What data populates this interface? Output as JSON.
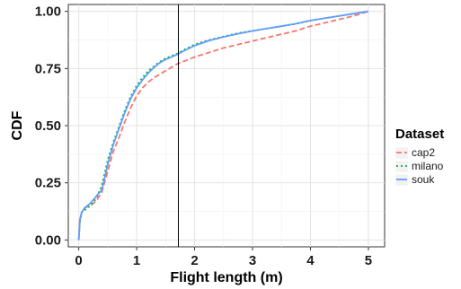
{
  "chart_data": {
    "type": "line",
    "title": "",
    "xlabel": "Flight length (m)",
    "ylabel": "CDF",
    "xlim": [
      -0.18,
      5.28
    ],
    "ylim": [
      -0.03,
      1.03
    ],
    "x_ticks": [
      0,
      1,
      2,
      3,
      4,
      5
    ],
    "x_tick_labels": [
      "0",
      "1",
      "2",
      "3",
      "4",
      "5"
    ],
    "y_ticks": [
      0,
      0.25,
      0.5,
      0.75,
      1.0
    ],
    "y_tick_labels": [
      "0.00",
      "0.25",
      "0.50",
      "0.75",
      "1.00"
    ],
    "grid": true,
    "legend_title": "Dataset",
    "legend_position": "right",
    "vertical_line": {
      "x": 1.72,
      "color": "#000000"
    },
    "series": [
      {
        "name": "cap2",
        "color": "#F8766D",
        "dash": "6,3",
        "x": [
          0,
          0.02,
          0.05,
          0.1,
          0.2,
          0.3,
          0.4,
          0.5,
          0.6,
          0.7,
          0.8,
          0.9,
          1.0,
          1.1,
          1.2,
          1.3,
          1.4,
          1.5,
          1.6,
          1.7,
          1.8,
          2.0,
          2.25,
          2.5,
          2.75,
          3.0,
          3.25,
          3.5,
          3.75,
          4.0,
          4.25,
          4.5,
          4.75,
          5.0
        ],
        "y": [
          0.0,
          0.08,
          0.12,
          0.14,
          0.15,
          0.17,
          0.21,
          0.3,
          0.39,
          0.45,
          0.52,
          0.58,
          0.63,
          0.665,
          0.69,
          0.71,
          0.725,
          0.74,
          0.755,
          0.77,
          0.78,
          0.8,
          0.82,
          0.84,
          0.855,
          0.87,
          0.885,
          0.9,
          0.915,
          0.935,
          0.95,
          0.965,
          0.98,
          1.0
        ]
      },
      {
        "name": "milano",
        "color": "#00BA38",
        "dash": "2,3",
        "x": [
          0,
          0.02,
          0.05,
          0.1,
          0.2,
          0.3,
          0.4,
          0.5,
          0.6,
          0.7,
          0.8,
          0.9,
          1.0,
          1.1,
          1.2,
          1.3,
          1.4,
          1.5,
          1.6,
          1.7,
          1.8,
          2.0,
          2.25,
          2.5,
          2.75,
          3.0,
          3.25,
          3.5,
          3.75,
          4.0,
          4.25,
          4.5,
          4.75,
          5.0
        ],
        "y": [
          0.0,
          0.08,
          0.12,
          0.13,
          0.15,
          0.18,
          0.24,
          0.35,
          0.43,
          0.5,
          0.57,
          0.63,
          0.675,
          0.71,
          0.74,
          0.76,
          0.78,
          0.795,
          0.805,
          0.815,
          0.83,
          0.855,
          0.875,
          0.89,
          0.905,
          0.915,
          0.925,
          0.935,
          0.945,
          0.96,
          0.97,
          0.98,
          0.99,
          1.0
        ]
      },
      {
        "name": "souk",
        "color": "#619CFF",
        "dash": "",
        "x": [
          0,
          0.02,
          0.05,
          0.1,
          0.2,
          0.3,
          0.4,
          0.5,
          0.6,
          0.7,
          0.8,
          0.9,
          1.0,
          1.1,
          1.2,
          1.3,
          1.4,
          1.5,
          1.6,
          1.7,
          1.8,
          2.0,
          2.25,
          2.5,
          2.75,
          3.0,
          3.25,
          3.5,
          3.75,
          4.0,
          4.25,
          4.5,
          4.75,
          5.0
        ],
        "y": [
          0.0,
          0.09,
          0.12,
          0.14,
          0.16,
          0.19,
          0.22,
          0.33,
          0.42,
          0.49,
          0.56,
          0.62,
          0.665,
          0.7,
          0.73,
          0.755,
          0.775,
          0.79,
          0.8,
          0.812,
          0.825,
          0.85,
          0.872,
          0.888,
          0.902,
          0.914,
          0.925,
          0.935,
          0.946,
          0.96,
          0.97,
          0.98,
          0.99,
          1.0
        ]
      }
    ]
  }
}
